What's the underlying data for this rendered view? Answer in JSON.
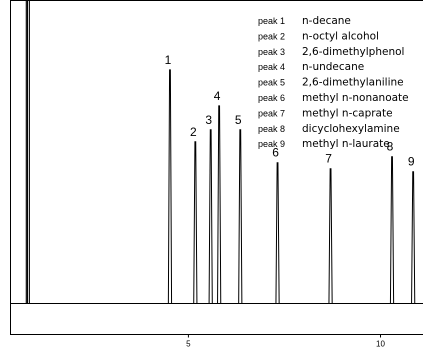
{
  "chart_data": {
    "type": "line",
    "title": "",
    "xlabel": "",
    "ylabel": "",
    "x_ticks": [
      5,
      10
    ],
    "x_tick_labels": [
      "5",
      "10"
    ],
    "xlim": [
      0.2,
      10.95
    ],
    "grid": false,
    "legend_position": "top-right",
    "baseline": 0,
    "solvent_front_x": [
      0.78,
      0.81,
      0.86
    ],
    "peaks": [
      {
        "label": "1",
        "x": 4.52,
        "height": 0.78
      },
      {
        "label": "2",
        "x": 5.18,
        "height": 0.54
      },
      {
        "label": "3",
        "x": 5.58,
        "height": 0.58
      },
      {
        "label": "4",
        "x": 5.8,
        "height": 0.66
      },
      {
        "label": "5",
        "x": 6.35,
        "height": 0.58
      },
      {
        "label": "6",
        "x": 7.32,
        "height": 0.47
      },
      {
        "label": "7",
        "x": 8.7,
        "height": 0.45
      },
      {
        "label": "8",
        "x": 10.3,
        "height": 0.49
      },
      {
        "label": "9",
        "x": 10.85,
        "height": 0.44
      }
    ],
    "legend": [
      {
        "peak": "peak 1",
        "name": "n-decane"
      },
      {
        "peak": "peak 2",
        "name": "n-octyl alcohol"
      },
      {
        "peak": "peak 3",
        "name": "2,6-dimethylphenol"
      },
      {
        "peak": "peak 4",
        "name": "n-undecane"
      },
      {
        "peak": "peak 5",
        "name": "2,6-dimethylaniline"
      },
      {
        "peak": "peak 6",
        "name": "methyl n-nonanoate"
      },
      {
        "peak": "peak 7",
        "name": "methyl n-caprate"
      },
      {
        "peak": "peak 8",
        "name": "dicyclohexylamine"
      },
      {
        "peak": "peak 9",
        "name": "methyl n-laurate"
      }
    ]
  }
}
